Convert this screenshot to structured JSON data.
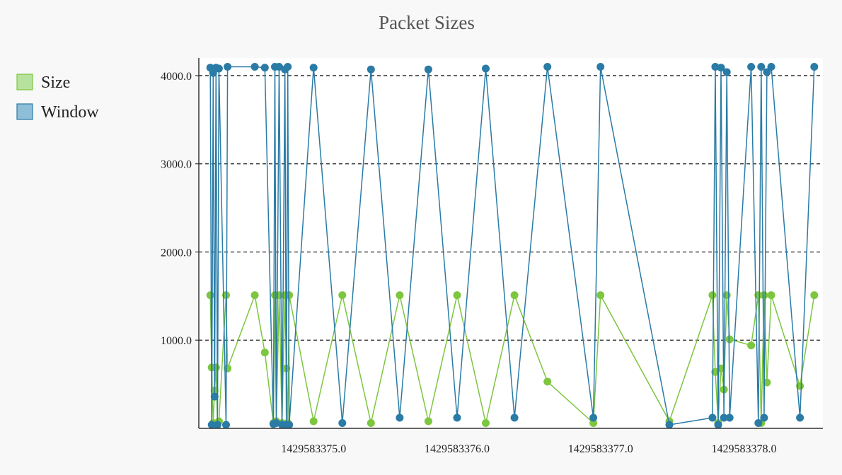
{
  "chart_data": {
    "type": "line",
    "title": "Packet Sizes",
    "xlabel": "",
    "ylabel": "",
    "xlim": [
      1429583374.2,
      1429583378.55
    ],
    "ylim": [
      0,
      4200
    ],
    "grid": {
      "x": false,
      "y": true
    },
    "legend_position": "top-left",
    "x_ticks": [
      {
        "value": 1429583375.0,
        "label": "1429583375.0"
      },
      {
        "value": 1429583376.0,
        "label": "1429583376.0"
      },
      {
        "value": 1429583377.0,
        "label": "1429583377.0"
      },
      {
        "value": 1429583378.0,
        "label": "1429583378.0"
      }
    ],
    "y_ticks": [
      {
        "value": 1000,
        "label": "1000.0"
      },
      {
        "value": 2000,
        "label": "2000.0"
      },
      {
        "value": 3000,
        "label": "3000.0"
      },
      {
        "value": 4000,
        "label": "4000.0"
      }
    ],
    "series": [
      {
        "name": "Size",
        "color": "#7dc63f",
        "legend_fill": "#b7e29d",
        "x": [
          1429583374.28,
          1429583374.29,
          1429583374.3,
          1429583374.31,
          1429583374.32,
          1429583374.33,
          1429583374.34,
          1429583374.39,
          1429583374.4,
          1429583374.59,
          1429583374.66,
          1429583374.72,
          1429583374.73,
          1429583374.74,
          1429583374.76,
          1429583374.78,
          1429583374.8,
          1429583374.81,
          1429583374.82,
          1429583374.83,
          1429583375.0,
          1429583375.2,
          1429583375.4,
          1429583375.6,
          1429583375.8,
          1429583376.0,
          1429583376.2,
          1429583376.4,
          1429583376.63,
          1429583376.95,
          1429583377.0,
          1429583377.48,
          1429583377.78,
          1429583377.8,
          1429583377.82,
          1429583377.84,
          1429583377.86,
          1429583377.88,
          1429583377.9,
          1429583378.05,
          1429583378.1,
          1429583378.12,
          1429583378.14,
          1429583378.16,
          1429583378.19,
          1429583378.39,
          1429583378.49
        ],
        "y": [
          1510,
          690,
          60,
          430,
          690,
          40,
          80,
          1510,
          680,
          1510,
          860,
          60,
          1510,
          80,
          1510,
          60,
          1510,
          680,
          60,
          1510,
          80,
          1510,
          60,
          1510,
          80,
          1510,
          60,
          1510,
          530,
          60,
          1510,
          80,
          1510,
          640,
          60,
          680,
          440,
          1510,
          1010,
          940,
          1510,
          60,
          1510,
          520,
          1510,
          480,
          1510
        ]
      },
      {
        "name": "Window",
        "color": "#2a7ba6",
        "legend_fill": "#8fbfd8",
        "x": [
          1429583374.28,
          1429583374.29,
          1429583374.3,
          1429583374.31,
          1429583374.32,
          1429583374.33,
          1429583374.34,
          1429583374.39,
          1429583374.4,
          1429583374.59,
          1429583374.66,
          1429583374.72,
          1429583374.73,
          1429583374.74,
          1429583374.76,
          1429583374.78,
          1429583374.8,
          1429583374.81,
          1429583374.82,
          1429583374.83,
          1429583375.0,
          1429583375.2,
          1429583375.4,
          1429583375.6,
          1429583375.8,
          1429583376.0,
          1429583376.2,
          1429583376.4,
          1429583376.63,
          1429583376.95,
          1429583377.0,
          1429583377.48,
          1429583377.78,
          1429583377.8,
          1429583377.82,
          1429583377.84,
          1429583377.86,
          1429583377.88,
          1429583377.9,
          1429583378.05,
          1429583378.1,
          1429583378.12,
          1429583378.14,
          1429583378.16,
          1429583378.19,
          1429583378.39,
          1429583378.49
        ],
        "y": [
          4090,
          40,
          4030,
          360,
          4090,
          40,
          4080,
          40,
          4100,
          4100,
          4090,
          50,
          4100,
          60,
          4100,
          40,
          4070,
          40,
          4100,
          40,
          4090,
          60,
          4070,
          120,
          4070,
          120,
          4080,
          120,
          4100,
          120,
          4100,
          40,
          120,
          4100,
          40,
          4090,
          120,
          4040,
          120,
          4100,
          60,
          4100,
          120,
          4040,
          4100,
          120,
          4100
        ]
      }
    ]
  }
}
